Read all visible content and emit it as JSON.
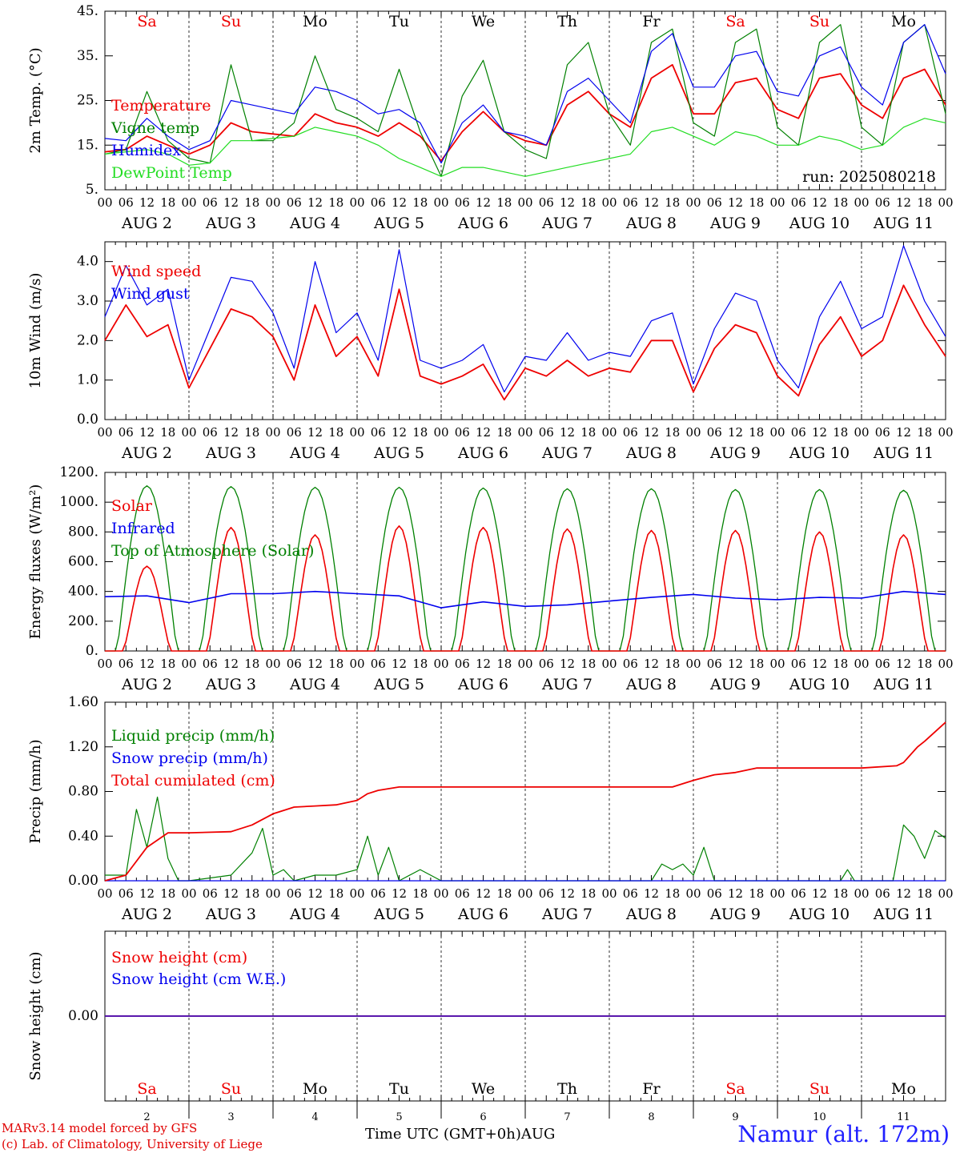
{
  "days": [
    "Sa",
    "Su",
    "Mo",
    "Tu",
    "We",
    "Th",
    "Fr",
    "Sa",
    "Su",
    "Mo"
  ],
  "weekend_flags": [
    true,
    true,
    false,
    false,
    false,
    false,
    false,
    true,
    true,
    false
  ],
  "date_labels": [
    "AUG  2",
    "AUG  3",
    "AUG  4",
    "AUG  5",
    "AUG  6",
    "AUG  7",
    "AUG  8",
    "AUG  9",
    "AUG 10",
    "AUG 11"
  ],
  "day_numbers": [
    "2",
    "3",
    "4",
    "5",
    "6",
    "7",
    "8",
    "9",
    "10",
    "11"
  ],
  "hour_labels": [
    "00",
    "06",
    "12",
    "18"
  ],
  "final_hour_label": "00",
  "x_axis_title": "Time UTC (GMT+0h)",
  "x_axis_month": "AUG",
  "credit_line1": "MARv3.14 model forced by GFS",
  "credit_line2": "(c) Lab. of Climatology, University of Liege",
  "station": "Namur (alt. 172m)",
  "run_label": "run: 2025080218",
  "colors": {
    "red": "#ee0000",
    "green": "#008000",
    "blue": "#0000ee",
    "lightgreen": "#22dd22",
    "weekend": "#ee0000"
  },
  "chart_data": [
    {
      "type": "line",
      "ylabel": "2m Temp. (°C)",
      "ylim": [
        5,
        45
      ],
      "yticks": [
        5,
        15,
        25,
        35,
        45
      ],
      "ytick_labels": [
        "5.",
        "15.",
        "25.",
        "35.",
        "45."
      ],
      "x_hours": [
        0,
        6,
        12,
        18,
        24,
        30,
        36,
        42,
        48,
        54,
        60,
        66,
        72,
        78,
        84,
        90,
        96,
        102,
        108,
        114,
        120,
        126,
        132,
        138,
        144,
        150,
        156,
        162,
        168,
        174,
        180,
        186,
        192,
        198,
        204,
        210,
        216,
        222,
        228,
        234,
        240
      ],
      "series": [
        {
          "name": "Temperature",
          "color": "red",
          "values": [
            13.5,
            14,
            17,
            15,
            13,
            15,
            20,
            18,
            17.5,
            17,
            22,
            20,
            19,
            17,
            20,
            17,
            11.5,
            18,
            22.5,
            18,
            16,
            15,
            24,
            27,
            22,
            19,
            30,
            33,
            22,
            22,
            29,
            30,
            23,
            21,
            30,
            31,
            24,
            21,
            30,
            32,
            24
          ]
        },
        {
          "name": "Vigne temp",
          "color": "green",
          "values": [
            13,
            14,
            27,
            16,
            12,
            11,
            33,
            16,
            16,
            20,
            35,
            23,
            21,
            18,
            32,
            18,
            8,
            26,
            34,
            18,
            14,
            12,
            33,
            38,
            22,
            15,
            38,
            41,
            20,
            17,
            38,
            41,
            19,
            15,
            38,
            42,
            19,
            15,
            38,
            42,
            22
          ]
        },
        {
          "name": "Humidex",
          "color": "blue",
          "values": [
            16.5,
            16,
            21,
            17,
            14,
            16,
            25,
            24,
            23,
            22,
            28,
            27,
            25,
            22,
            23,
            20,
            11,
            20,
            24,
            18,
            17,
            15,
            27,
            30,
            25,
            20,
            36,
            40,
            28,
            28,
            35,
            36,
            27,
            26,
            35,
            37,
            28,
            24,
            38,
            42,
            31
          ]
        },
        {
          "name": "DewPoint Temp",
          "color": "lightgreen",
          "values": [
            13,
            13.5,
            14,
            13,
            10.5,
            11,
            16,
            16,
            16.5,
            17,
            19,
            18,
            17,
            15,
            12,
            10,
            8,
            10,
            10,
            9,
            8,
            9,
            10,
            11,
            12,
            13,
            18,
            19,
            17,
            15,
            18,
            17,
            15,
            15,
            17,
            16,
            14,
            15,
            19,
            21,
            20
          ]
        }
      ]
    },
    {
      "type": "line",
      "ylabel": "10m Wind (m/s)",
      "ylim": [
        0,
        4.5
      ],
      "yticks": [
        0,
        1,
        2,
        3,
        4
      ],
      "ytick_labels": [
        "0.0",
        "1.0",
        "2.0",
        "3.0",
        "4.0"
      ],
      "x_hours": [
        0,
        6,
        12,
        18,
        24,
        30,
        36,
        42,
        48,
        54,
        60,
        66,
        72,
        78,
        84,
        90,
        96,
        102,
        108,
        114,
        120,
        126,
        132,
        138,
        144,
        150,
        156,
        162,
        168,
        174,
        180,
        186,
        192,
        198,
        204,
        210,
        216,
        222,
        228,
        234,
        240
      ],
      "series": [
        {
          "name": "Wind speed",
          "color": "red",
          "values": [
            2.0,
            2.9,
            2.1,
            2.4,
            0.8,
            1.8,
            2.8,
            2.6,
            2.1,
            1.0,
            2.9,
            1.6,
            2.1,
            1.1,
            3.3,
            1.1,
            0.9,
            1.1,
            1.4,
            0.5,
            1.3,
            1.1,
            1.5,
            1.1,
            1.3,
            1.2,
            2.0,
            2.0,
            0.7,
            1.8,
            2.4,
            2.2,
            1.1,
            0.6,
            1.9,
            2.6,
            1.6,
            2.0,
            3.4,
            2.4,
            1.6
          ]
        },
        {
          "name": "Wind gust",
          "color": "blue",
          "values": [
            2.6,
            3.9,
            2.9,
            3.3,
            1.0,
            2.3,
            3.6,
            3.5,
            2.7,
            1.3,
            4.0,
            2.2,
            2.7,
            1.5,
            4.3,
            1.5,
            1.3,
            1.5,
            1.9,
            0.7,
            1.6,
            1.5,
            2.2,
            1.5,
            1.7,
            1.6,
            2.5,
            2.7,
            0.9,
            2.3,
            3.2,
            3.0,
            1.5,
            0.8,
            2.6,
            3.5,
            2.3,
            2.6,
            4.4,
            3.0,
            2.1
          ]
        }
      ]
    },
    {
      "type": "line",
      "ylabel": "Energy fluxes (W/m²)",
      "ylim": [
        0,
        1200
      ],
      "yticks": [
        0,
        200,
        400,
        600,
        800,
        1000,
        1200
      ],
      "ytick_labels": [
        "0.",
        "200.",
        "400.",
        "600.",
        "800.",
        "1000.",
        "1200."
      ],
      "solar_peaks": [
        570,
        830,
        780,
        840,
        830,
        820,
        810,
        810,
        800,
        780
      ],
      "toa_peaks": [
        1110,
        1105,
        1100,
        1100,
        1095,
        1090,
        1090,
        1085,
        1085,
        1080
      ],
      "series": [
        {
          "name": "Solar",
          "color": "red"
        },
        {
          "name": "Infrared",
          "color": "blue",
          "x_hours": [
            0,
            12,
            24,
            36,
            48,
            60,
            72,
            84,
            96,
            108,
            120,
            132,
            144,
            156,
            168,
            180,
            192,
            204,
            216,
            228,
            240
          ],
          "values": [
            365,
            370,
            325,
            385,
            385,
            400,
            385,
            370,
            290,
            330,
            300,
            310,
            335,
            360,
            380,
            355,
            345,
            360,
            355,
            400,
            380
          ]
        },
        {
          "name": "Top of Atmosphere (Solar)",
          "color": "green"
        }
      ]
    },
    {
      "type": "line",
      "ylabel": "Precip (mm/h)",
      "ylim": [
        0,
        1.6
      ],
      "yticks": [
        0,
        0.4,
        0.8,
        1.2,
        1.6
      ],
      "ytick_labels": [
        "0.00",
        "0.40",
        "0.80",
        "1.20",
        "1.60"
      ],
      "series": [
        {
          "name": "Liquid precip (mm/h)",
          "color": "green",
          "x_hours": [
            0,
            6,
            9,
            12,
            15,
            18,
            21,
            24,
            36,
            42,
            45,
            48,
            51,
            54,
            60,
            66,
            72,
            75,
            78,
            81,
            84,
            90,
            96,
            156,
            159,
            162,
            165,
            168,
            171,
            174,
            180,
            186,
            210,
            212,
            214,
            225,
            228,
            231,
            234,
            237,
            240
          ],
          "values": [
            0.05,
            0.05,
            0.64,
            0.3,
            0.75,
            0.2,
            0,
            0,
            0.05,
            0.25,
            0.47,
            0.05,
            0.1,
            0,
            0.05,
            0.05,
            0.1,
            0.4,
            0.05,
            0.3,
            0,
            0.1,
            0,
            0,
            0.15,
            0.1,
            0.15,
            0.05,
            0.3,
            0,
            0,
            0,
            0,
            0.1,
            0,
            0,
            0.5,
            0.4,
            0.2,
            0.45,
            0.38
          ]
        },
        {
          "name": "Snow precip (mm/h)",
          "color": "blue",
          "x_hours": [
            0,
            240
          ],
          "values": [
            0,
            0
          ]
        },
        {
          "name": "Total cumulated (cm)",
          "color": "red",
          "x_hours": [
            0,
            6,
            12,
            18,
            24,
            36,
            42,
            48,
            54,
            60,
            66,
            72,
            75,
            78,
            84,
            96,
            108,
            120,
            144,
            162,
            168,
            174,
            180,
            186,
            198,
            216,
            226,
            228,
            232,
            234,
            240
          ],
          "values": [
            0,
            0.05,
            0.3,
            0.43,
            0.43,
            0.44,
            0.5,
            0.6,
            0.66,
            0.67,
            0.68,
            0.72,
            0.78,
            0.81,
            0.84,
            0.84,
            0.84,
            0.84,
            0.84,
            0.84,
            0.9,
            0.95,
            0.97,
            1.01,
            1.01,
            1.01,
            1.03,
            1.06,
            1.2,
            1.25,
            1.42
          ]
        }
      ]
    },
    {
      "type": "line",
      "ylabel": "Snow height (cm)",
      "ylim": [
        -1,
        1
      ],
      "yticks": [
        0
      ],
      "ytick_labels": [
        "0.00"
      ],
      "series": [
        {
          "name": "Snow height (cm)",
          "color": "red",
          "x_hours": [
            0,
            240
          ],
          "values": [
            0,
            0
          ]
        },
        {
          "name": "Snow height (cm W.E.)",
          "color": "blue",
          "x_hours": [
            0,
            240
          ],
          "values": [
            0,
            0
          ]
        }
      ]
    }
  ]
}
